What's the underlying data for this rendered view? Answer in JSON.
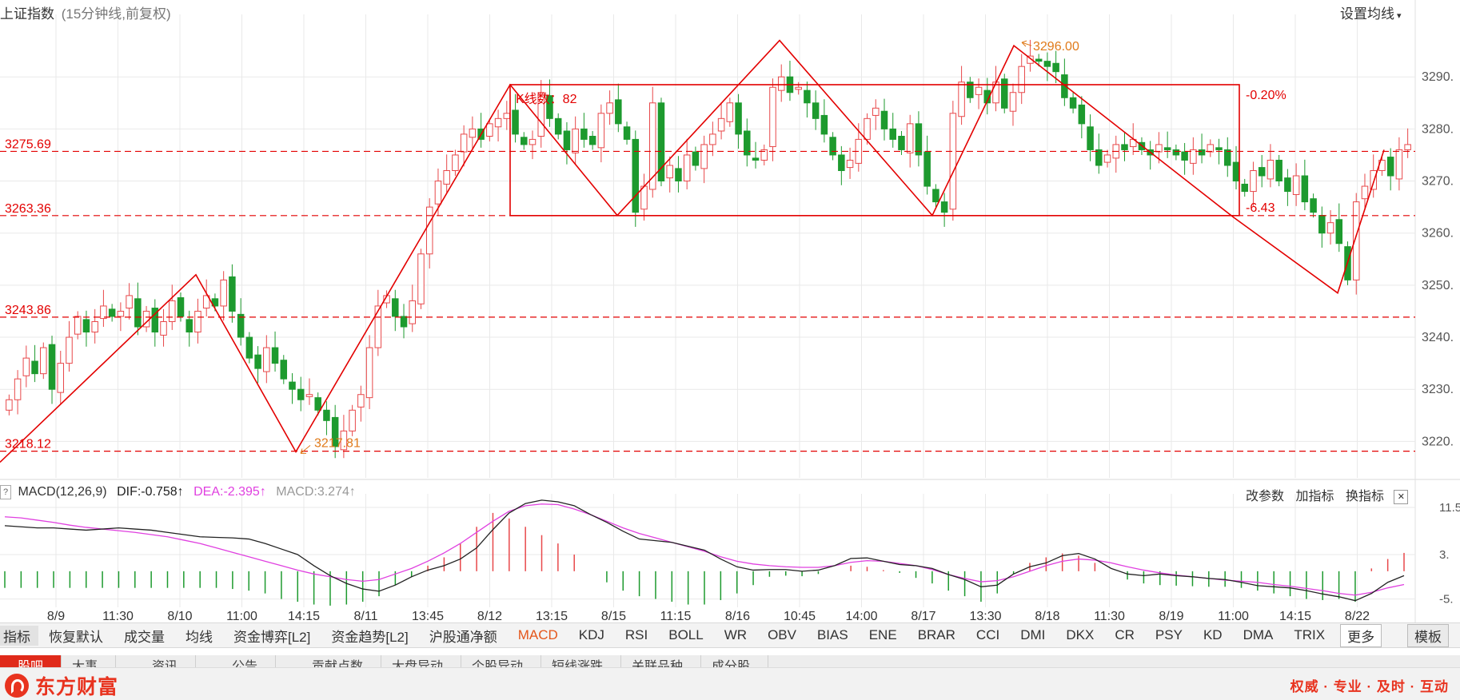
{
  "header": {
    "title": "上证指数",
    "subtitle": "(15分钟线,前复权)",
    "ma_settings": "设置均线"
  },
  "colors": {
    "up": "#e8484a",
    "down": "#1d9a2e",
    "annotation": "#e30000",
    "dif_line": "#222222",
    "dea_line": "#e040e0",
    "grid": "#e9e9e9"
  },
  "chart_data": {
    "type": "candlestick",
    "main": {
      "title": "上证指数",
      "subtitle": "(15分钟线,前复权)",
      "ylim": [
        3213,
        3302
      ],
      "y_ticks": [
        3220,
        3230,
        3240,
        3250,
        3260,
        3270,
        3280,
        3290
      ],
      "y_tick_labels": [
        "3220.",
        "3230.",
        "3240.",
        "3250.",
        "3260.",
        "3270.",
        "3280.",
        "3290."
      ],
      "x_tick_labels": [
        "8/9",
        "11:30",
        "8/10",
        "11:00",
        "14:15",
        "8/11",
        "13:45",
        "8/12",
        "13:15",
        "8/15",
        "11:15",
        "8/16",
        "10:45",
        "14:00",
        "8/17",
        "13:30",
        "8/18",
        "11:30",
        "8/19",
        "11:00",
        "14:15",
        "8/22"
      ],
      "grid": true,
      "horizontal_levels": [
        {
          "value": 3275.69,
          "label": "3275.69"
        },
        {
          "value": 3263.36,
          "label": "3263.36"
        },
        {
          "value": 3243.86,
          "label": "3243.86"
        },
        {
          "value": 3218.12,
          "label": "3218.12"
        }
      ],
      "box": {
        "top": 3288.5,
        "bottom": 3263.36,
        "k_count_label": "K线数：82",
        "change_label": "-0.20%",
        "diff_label": "-6.43"
      },
      "marked_low": "3217.81",
      "marked_high": "3296.00",
      "close_series": [
        3228,
        3232,
        3236,
        3233,
        3238,
        3230,
        3235,
        3240,
        3244,
        3241,
        3243,
        3246,
        3244,
        3245,
        3248,
        3242,
        3245,
        3241,
        3243,
        3247,
        3244,
        3241,
        3245,
        3248,
        3246,
        3251,
        3245,
        3240,
        3236,
        3234,
        3238,
        3235,
        3232,
        3230,
        3228,
        3229,
        3226,
        3224,
        3219,
        3222,
        3226,
        3229,
        3238,
        3246,
        3248,
        3244,
        3242,
        3247,
        3256,
        3265,
        3270,
        3272,
        3275,
        3279,
        3280,
        3278,
        3281,
        3282,
        3283,
        3279,
        3277,
        3278,
        3287,
        3282,
        3279,
        3276,
        3280,
        3278,
        3277,
        3283,
        3285,
        3281,
        3278,
        3264,
        3269,
        3285,
        3270,
        3273,
        3270,
        3275,
        3273,
        3277,
        3279,
        3282,
        3285,
        3279,
        3275,
        3274,
        3276,
        3288,
        3290,
        3287,
        3288,
        3285,
        3282,
        3279,
        3275,
        3272,
        3274,
        3278,
        3282,
        3284,
        3280,
        3278,
        3276,
        3281,
        3275,
        3269,
        3266,
        3264,
        3283,
        3289,
        3286,
        3288,
        3285,
        3289,
        3284,
        3287,
        3292,
        3294,
        3293,
        3292,
        3291,
        3286,
        3284,
        3281,
        3276,
        3273,
        3275,
        3277,
        3276,
        3278,
        3276,
        3275,
        3277,
        3276,
        3275,
        3274,
        3276,
        3275,
        3277,
        3276,
        3273,
        3270,
        3268,
        3272,
        3271,
        3274,
        3270,
        3268,
        3271,
        3266,
        3264,
        3260,
        3262,
        3258,
        3251,
        3266,
        3269,
        3272,
        3274,
        3271,
        3276,
        3277
      ]
    },
    "macd": {
      "name": "MACD(12,26,9)",
      "dif_label": "DIF:-0.758",
      "dea_label": "DEA:-2.395",
      "macd_label": "MACD:3.274",
      "arrow": "↑",
      "ylim": [
        -6.5,
        12.5
      ],
      "y_tick_labels": [
        "11.5",
        "3.",
        "-5."
      ],
      "y_ticks": [
        11.5,
        3,
        -5
      ],
      "dif": [
        8.2,
        8.0,
        7.8,
        7.8,
        7.6,
        7.4,
        7.6,
        7.8,
        7.6,
        7.4,
        7.0,
        6.6,
        6.2,
        6.1,
        6.0,
        5.8,
        5.0,
        4.0,
        3.0,
        1.0,
        -0.8,
        -2.2,
        -3.2,
        -3.6,
        -2.5,
        -1.0,
        0.2,
        1.0,
        2.2,
        4.2,
        7.5,
        10.5,
        12.2,
        12.8,
        12.5,
        11.8,
        10.2,
        8.8,
        7.2,
        5.8,
        5.5,
        5.2,
        4.5,
        3.8,
        2.2,
        0.8,
        0.2,
        0.3,
        0.3,
        0.0,
        0.2,
        1.0,
        2.3,
        2.4,
        1.8,
        1.2,
        1.0,
        0.5,
        -0.6,
        -1.5,
        -2.8,
        -2.5,
        -0.5,
        0.8,
        1.5,
        2.8,
        3.2,
        2.2,
        0.5,
        -0.5,
        -0.8,
        -0.5,
        -0.8,
        -1.0,
        -1.3,
        -1.5,
        -2.0,
        -2.6,
        -2.8,
        -3.0,
        -3.5,
        -4.1,
        -4.6,
        -5.3,
        -4.0,
        -2.0,
        -0.8
      ],
      "dea": [
        9.8,
        9.6,
        9.2,
        8.8,
        8.3,
        7.9,
        7.6,
        7.3,
        7.0,
        6.6,
        6.2,
        5.6,
        5.0,
        4.2,
        3.4,
        2.6,
        1.8,
        1.0,
        0.2,
        -0.5,
        -1.0,
        -1.5,
        -1.8,
        -1.5,
        -0.5,
        0.5,
        1.8,
        3.3,
        5.0,
        7.0,
        9.0,
        10.8,
        11.8,
        12.1,
        12.0,
        11.2,
        10.2,
        9.0,
        7.8,
        6.8,
        6.0,
        5.2,
        4.4,
        3.6,
        2.6,
        1.8,
        1.3,
        1.0,
        0.8,
        0.7,
        0.7,
        1.0,
        1.6,
        1.9,
        1.8,
        1.4,
        1.0,
        0.3,
        -0.6,
        -1.3,
        -1.9,
        -1.7,
        -1.0,
        0.0,
        1.0,
        1.8,
        2.2,
        2.0,
        1.5,
        0.8,
        0.2,
        -0.3,
        -0.7,
        -1.0,
        -1.3,
        -1.6,
        -1.8,
        -2.0,
        -2.4,
        -2.7,
        -3.1,
        -3.5,
        -4.0,
        -4.3,
        -3.8,
        -3.0,
        -2.4
      ],
      "hist": [
        -3.0,
        -3.0,
        -3.0,
        -3.0,
        -3.0,
        -3.0,
        -3.0,
        -3.0,
        -3.0,
        -3.0,
        -3.0,
        -3.0,
        -3.0,
        -3.0,
        -3.2,
        -3.5,
        -4.0,
        -5.0,
        -5.5,
        -6.0,
        -6.2,
        -6.0,
        -5.5,
        -4.5,
        -2.5,
        -1.0,
        1.0,
        2.5,
        5.0,
        8.0,
        10.5,
        9.5,
        8.0,
        6.5,
        5.0,
        3.0,
        0.0,
        -2.0,
        -3.5,
        -4.5,
        -5.0,
        -5.5,
        -6.0,
        -6.0,
        -5.2,
        -4.0,
        -2.5,
        -1.0,
        -0.8,
        -0.9,
        -0.5,
        0.0,
        1.0,
        0.8,
        0.2,
        -0.3,
        -1.2,
        -2.2,
        -3.5,
        -4.5,
        -5.5,
        -4.0,
        -0.5,
        1.5,
        2.5,
        3.2,
        2.8,
        1.5,
        0.0,
        -1.5,
        -2.2,
        -2.5,
        -2.6,
        -2.7,
        -2.8,
        -2.8,
        -3.0,
        -3.5,
        -4.0,
        -4.5,
        -5.0,
        -5.2,
        -5.0,
        -5.5,
        0.5,
        2.2,
        3.3
      ]
    }
  },
  "macd_panel": {
    "toggle_label": "?",
    "change_params": "改参数",
    "add_indicator": "加指标",
    "switch_indicator": "换指标",
    "close": "✕"
  },
  "indicator_bar": {
    "items": [
      "指标",
      "恢复默认",
      "成交量",
      "均线",
      "资金博弈[L2]",
      "资金趋势[L2]",
      "沪股通净额",
      "MACD",
      "KDJ",
      "RSI",
      "BOLL",
      "WR",
      "OBV",
      "BIAS",
      "ENE",
      "BRAR",
      "CCI",
      "DMI",
      "DKX",
      "CR",
      "PSY",
      "KD",
      "DMA",
      "TRIX"
    ],
    "active": "MACD",
    "more": "更多",
    "template": "模板"
  },
  "tabs": [
    "股吧",
    "大事",
    "资讯",
    "公告",
    "贡献点数",
    "大盘异动",
    "个股异动",
    "短线涨跌",
    "关联品种",
    "成分股"
  ],
  "footer": {
    "brand": "东方财富",
    "slogan": "权威 · 专业 · 及时 · 互动"
  }
}
